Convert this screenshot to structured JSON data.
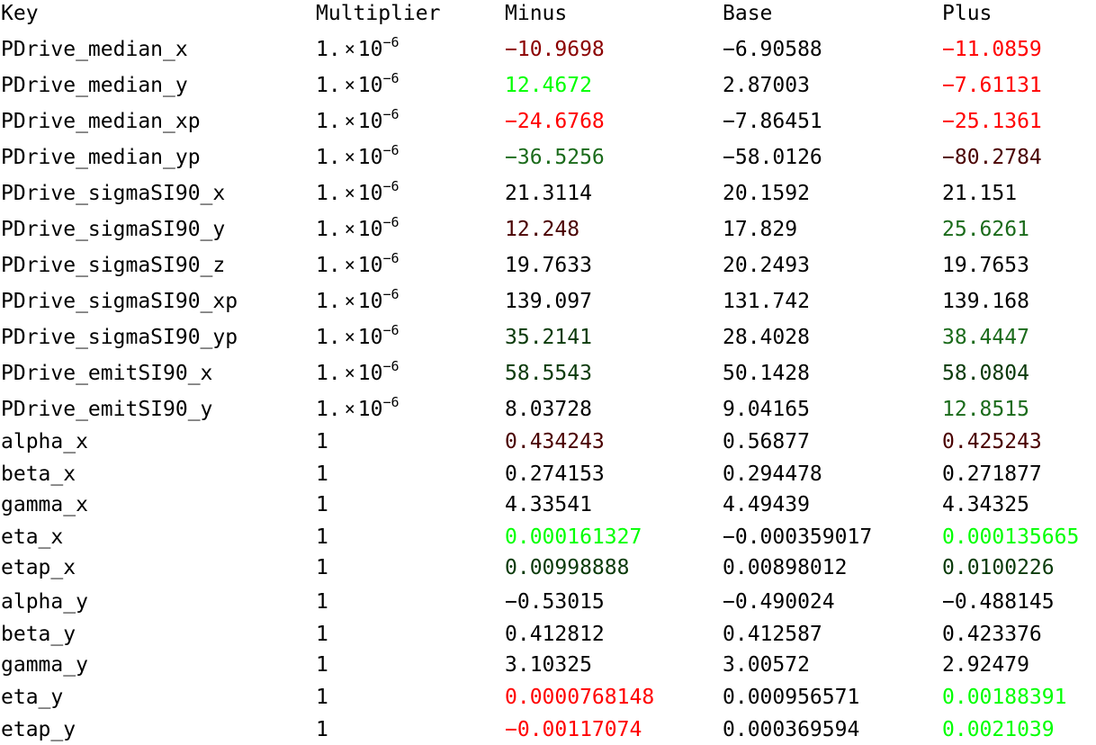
{
  "headers": {
    "key": "Key",
    "multiplier": "Multiplier",
    "minus": "Minus",
    "base": "Base",
    "plus": "Plus"
  },
  "colors": {
    "default": "#000000",
    "dark_red": "#8b0000",
    "red": "#ff0000",
    "bright_green": "#00ff00",
    "dark_green": "#1b6b1b",
    "very_dark_red": "#4a0000",
    "very_dark_green": "#0a3a0a"
  },
  "rows": [
    {
      "key": "PDrive_median_x",
      "mult": {
        "mantissa": "1.",
        "times": "×",
        "base": "10",
        "exp": "−6"
      },
      "minus": {
        "text": "−10.9698",
        "color": "#8b0000"
      },
      "base": {
        "text": "−6.90588",
        "color": "#000000"
      },
      "plus": {
        "text": "−11.0859",
        "color": "#ff0000"
      }
    },
    {
      "key": "PDrive_median_y",
      "mult": {
        "mantissa": "1.",
        "times": "×",
        "base": "10",
        "exp": "−6"
      },
      "minus": {
        "text": "12.4672",
        "color": "#00ff00"
      },
      "base": {
        "text": "2.87003",
        "color": "#000000"
      },
      "plus": {
        "text": "−7.61131",
        "color": "#ff0000"
      }
    },
    {
      "key": "PDrive_median_xp",
      "mult": {
        "mantissa": "1.",
        "times": "×",
        "base": "10",
        "exp": "−6"
      },
      "minus": {
        "text": "−24.6768",
        "color": "#ff0000"
      },
      "base": {
        "text": "−7.86451",
        "color": "#000000"
      },
      "plus": {
        "text": "−25.1361",
        "color": "#ff0000"
      }
    },
    {
      "key": "PDrive_median_yp",
      "mult": {
        "mantissa": "1.",
        "times": "×",
        "base": "10",
        "exp": "−6"
      },
      "minus": {
        "text": "−36.5256",
        "color": "#1b6b1b"
      },
      "base": {
        "text": "−58.0126",
        "color": "#000000"
      },
      "plus": {
        "text": "−80.2784",
        "color": "#4a0000"
      }
    },
    {
      "key": "PDrive_sigmaSI90_x",
      "mult": {
        "mantissa": "1.",
        "times": "×",
        "base": "10",
        "exp": "−6"
      },
      "minus": {
        "text": "21.3114",
        "color": "#000000"
      },
      "base": {
        "text": "20.1592",
        "color": "#000000"
      },
      "plus": {
        "text": "21.151",
        "color": "#000000"
      }
    },
    {
      "key": "PDrive_sigmaSI90_y",
      "mult": {
        "mantissa": "1.",
        "times": "×",
        "base": "10",
        "exp": "−6"
      },
      "minus": {
        "text": "12.248",
        "color": "#4a0000"
      },
      "base": {
        "text": "17.829",
        "color": "#000000"
      },
      "plus": {
        "text": "25.6261",
        "color": "#1b6b1b"
      }
    },
    {
      "key": "PDrive_sigmaSI90_z",
      "mult": {
        "mantissa": "1.",
        "times": "×",
        "base": "10",
        "exp": "−6"
      },
      "minus": {
        "text": "19.7633",
        "color": "#000000"
      },
      "base": {
        "text": "20.2493",
        "color": "#000000"
      },
      "plus": {
        "text": "19.7653",
        "color": "#000000"
      }
    },
    {
      "key": "PDrive_sigmaSI90_xp",
      "mult": {
        "mantissa": "1.",
        "times": "×",
        "base": "10",
        "exp": "−6"
      },
      "minus": {
        "text": "139.097",
        "color": "#000000"
      },
      "base": {
        "text": "131.742",
        "color": "#000000"
      },
      "plus": {
        "text": "139.168",
        "color": "#000000"
      }
    },
    {
      "key": "PDrive_sigmaSI90_yp",
      "mult": {
        "mantissa": "1.",
        "times": "×",
        "base": "10",
        "exp": "−6"
      },
      "minus": {
        "text": "35.2141",
        "color": "#0a3a0a"
      },
      "base": {
        "text": "28.4028",
        "color": "#000000"
      },
      "plus": {
        "text": "38.4447",
        "color": "#1b6b1b"
      }
    },
    {
      "key": "PDrive_emitSI90_x",
      "mult": {
        "mantissa": "1.",
        "times": "×",
        "base": "10",
        "exp": "−6"
      },
      "minus": {
        "text": "58.5543",
        "color": "#0a3a0a"
      },
      "base": {
        "text": "50.1428",
        "color": "#000000"
      },
      "plus": {
        "text": "58.0804",
        "color": "#0a3a0a"
      }
    },
    {
      "key": "PDrive_emitSI90_y",
      "mult": {
        "mantissa": "1.",
        "times": "×",
        "base": "10",
        "exp": "−6"
      },
      "minus": {
        "text": "8.03728",
        "color": "#000000"
      },
      "base": {
        "text": "9.04165",
        "color": "#000000"
      },
      "plus": {
        "text": "12.8515",
        "color": "#1b6b1b"
      }
    },
    {
      "key": "alpha_x",
      "mult": {
        "mantissa": "1",
        "times": "",
        "base": "",
        "exp": ""
      },
      "minus": {
        "text": "0.434243",
        "color": "#4a0000"
      },
      "base": {
        "text": "0.56877",
        "color": "#000000"
      },
      "plus": {
        "text": "0.425243",
        "color": "#4a0000"
      }
    },
    {
      "key": "beta_x",
      "mult": {
        "mantissa": "1",
        "times": "",
        "base": "",
        "exp": ""
      },
      "minus": {
        "text": "0.274153",
        "color": "#000000"
      },
      "base": {
        "text": "0.294478",
        "color": "#000000"
      },
      "plus": {
        "text": "0.271877",
        "color": "#000000"
      }
    },
    {
      "key": "gamma_x",
      "mult": {
        "mantissa": "1",
        "times": "",
        "base": "",
        "exp": ""
      },
      "minus": {
        "text": "4.33541",
        "color": "#000000"
      },
      "base": {
        "text": "4.49439",
        "color": "#000000"
      },
      "plus": {
        "text": "4.34325",
        "color": "#000000"
      }
    },
    {
      "key": "eta_x",
      "mult": {
        "mantissa": "1",
        "times": "",
        "base": "",
        "exp": ""
      },
      "minus": {
        "text": "0.000161327",
        "color": "#00ff00"
      },
      "base": {
        "text": "−0.000359017",
        "color": "#000000"
      },
      "plus": {
        "text": "0.000135665",
        "color": "#00ff00"
      }
    },
    {
      "key": "etap_x",
      "mult": {
        "mantissa": "1",
        "times": "",
        "base": "",
        "exp": ""
      },
      "minus": {
        "text": "0.00998888",
        "color": "#0a3a0a"
      },
      "base": {
        "text": "0.00898012",
        "color": "#000000"
      },
      "plus": {
        "text": "0.0100226",
        "color": "#0a3a0a"
      }
    },
    {
      "key": "alpha_y",
      "mult": {
        "mantissa": "1",
        "times": "",
        "base": "",
        "exp": ""
      },
      "minus": {
        "text": "−0.53015",
        "color": "#000000"
      },
      "base": {
        "text": "−0.490024",
        "color": "#000000"
      },
      "plus": {
        "text": "−0.488145",
        "color": "#000000"
      }
    },
    {
      "key": "beta_y",
      "mult": {
        "mantissa": "1",
        "times": "",
        "base": "",
        "exp": ""
      },
      "minus": {
        "text": "0.412812",
        "color": "#000000"
      },
      "base": {
        "text": "0.412587",
        "color": "#000000"
      },
      "plus": {
        "text": "0.423376",
        "color": "#000000"
      }
    },
    {
      "key": "gamma_y",
      "mult": {
        "mantissa": "1",
        "times": "",
        "base": "",
        "exp": ""
      },
      "minus": {
        "text": "3.10325",
        "color": "#000000"
      },
      "base": {
        "text": "3.00572",
        "color": "#000000"
      },
      "plus": {
        "text": "2.92479",
        "color": "#000000"
      }
    },
    {
      "key": "eta_y",
      "mult": {
        "mantissa": "1",
        "times": "",
        "base": "",
        "exp": ""
      },
      "minus": {
        "text": "0.0000768148",
        "color": "#ff0000"
      },
      "base": {
        "text": "0.000956571",
        "color": "#000000"
      },
      "plus": {
        "text": "0.00188391",
        "color": "#00ff00"
      }
    },
    {
      "key": "etap_y",
      "mult": {
        "mantissa": "1",
        "times": "",
        "base": "",
        "exp": ""
      },
      "minus": {
        "text": "−0.00117074",
        "color": "#ff0000"
      },
      "base": {
        "text": "0.000369594",
        "color": "#000000"
      },
      "plus": {
        "text": "0.0021039",
        "color": "#00ff00"
      }
    }
  ]
}
